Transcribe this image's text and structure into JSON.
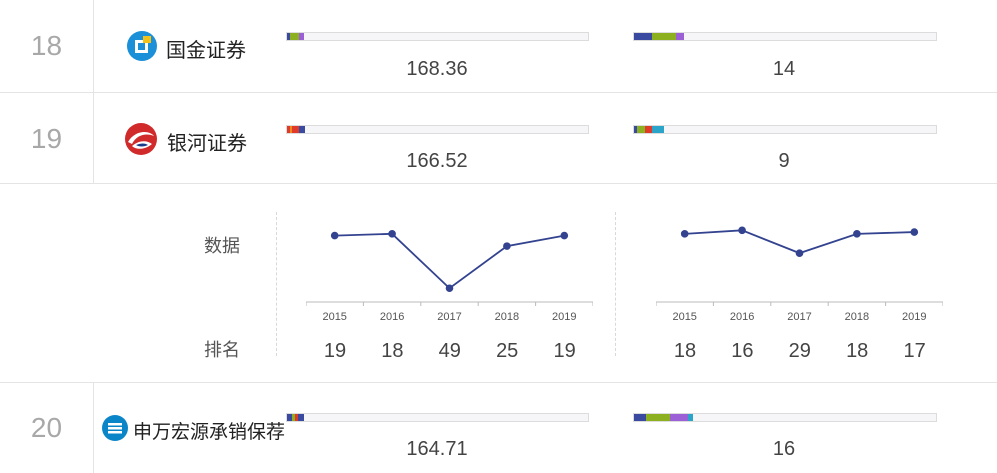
{
  "colors": {
    "navy": "#3a4aa0",
    "olive": "#8db020",
    "purple": "#9b5fd6",
    "red": "#e03a2a",
    "orange": "#f08a1a",
    "teal": "#2aa4c8",
    "line": "#33438f",
    "empty": "#f6f6f8"
  },
  "rows": [
    {
      "rank": "18",
      "company": "国金证券",
      "logo_icon": "guojin-logo-icon",
      "value1": "168.36",
      "value2": "14",
      "bar1": [
        {
          "color": "#3a4aa0",
          "pct": 1
        },
        {
          "color": "#8db020",
          "pct": 3
        },
        {
          "color": "#9b5fd6",
          "pct": 1.5
        }
      ],
      "bar2": [
        {
          "color": "#3a4aa0",
          "pct": 6
        },
        {
          "color": "#8db020",
          "pct": 8
        },
        {
          "color": "#9b5fd6",
          "pct": 2.5
        }
      ]
    },
    {
      "rank": "19",
      "company": "银河证券",
      "logo_icon": "yinhe-logo-icon",
      "value1": "166.52",
      "value2": "9",
      "bar1": [
        {
          "color": "#e03a2a",
          "pct": 1
        },
        {
          "color": "#f08a1a",
          "pct": 0.5
        },
        {
          "color": "#e03a2a",
          "pct": 2.5
        },
        {
          "color": "#3a4aa0",
          "pct": 2
        }
      ],
      "bar2": [
        {
          "color": "#3a4aa0",
          "pct": 1
        },
        {
          "color": "#8db020",
          "pct": 2.5
        },
        {
          "color": "#e03a2a",
          "pct": 2.5
        },
        {
          "color": "#2aa4c8",
          "pct": 4
        }
      ]
    },
    {
      "rank": "20",
      "company": "申万宏源承销保荐",
      "logo_icon": "shenwan-logo-icon",
      "value1": "164.71",
      "value2": "16",
      "bar1": [
        {
          "color": "#3a4aa0",
          "pct": 1.5
        },
        {
          "color": "#8db020",
          "pct": 1
        },
        {
          "color": "#e03a2a",
          "pct": 1
        },
        {
          "color": "#3a4aa0",
          "pct": 2
        }
      ],
      "bar2": [
        {
          "color": "#3a4aa0",
          "pct": 4
        },
        {
          "color": "#8db020",
          "pct": 8
        },
        {
          "color": "#9b5fd6",
          "pct": 6
        },
        {
          "color": "#2aa4c8",
          "pct": 1.5
        }
      ]
    }
  ],
  "detail": {
    "data_label": "数据",
    "rank_label": "排名",
    "chart_data": [
      {
        "type": "line",
        "x": [
          "2015",
          "2016",
          "2017",
          "2018",
          "2019"
        ],
        "values": [
          19,
          18,
          49,
          25,
          19
        ],
        "ranks": [
          "19",
          "18",
          "49",
          "25",
          "19"
        ]
      },
      {
        "type": "line",
        "x": [
          "2015",
          "2016",
          "2017",
          "2018",
          "2019"
        ],
        "values": [
          18,
          16,
          29,
          18,
          17
        ],
        "ranks": [
          "18",
          "16",
          "29",
          "18",
          "17"
        ]
      }
    ]
  }
}
